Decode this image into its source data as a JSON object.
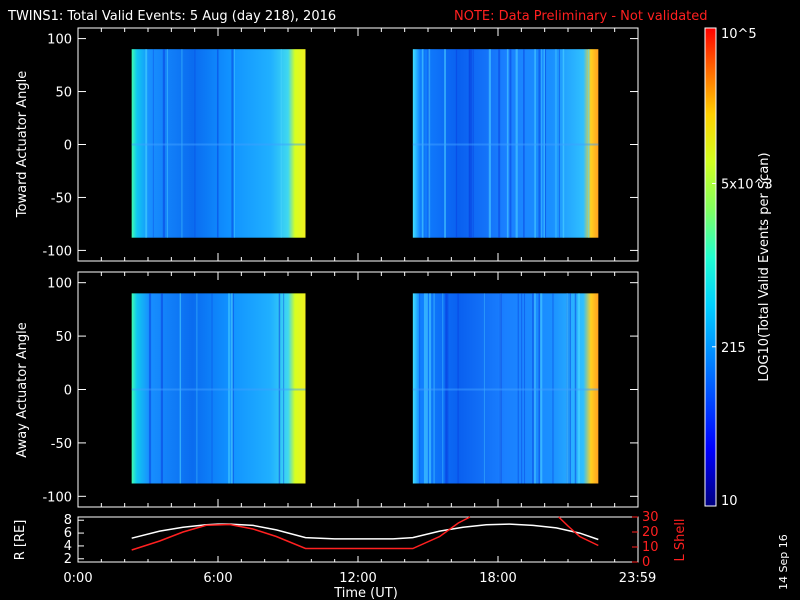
{
  "header": {
    "title": "TWINS1: Total Valid Events:  5 Aug (day 218), 2016",
    "note": "NOTE: Data Preliminary - Not validated"
  },
  "footer": {
    "stamp": "14 Sep 16"
  },
  "colors": {
    "note": "#ff2020",
    "background": "#000000",
    "frame": "#ffffff",
    "lshell": "#ff2020",
    "rdist": "#ffffff"
  },
  "chart_data": [
    {
      "type": "heatmap",
      "panel": "toward",
      "ylabel": "Toward Actuator Angle",
      "ylim": [
        -110,
        110
      ],
      "yticks": [
        100,
        50,
        0,
        -50,
        -100
      ],
      "xlim": [
        0,
        24
      ],
      "x_units": "hours UT",
      "data_blocks": [
        {
          "start_hour": 2.3,
          "end_hour": 9.75,
          "angle_range": [
            -88,
            90
          ]
        },
        {
          "start_hour": 14.35,
          "end_hour": 22.3,
          "angle_range": [
            -88,
            90
          ]
        }
      ],
      "colorbar": {
        "label": "LOG10(Total Valid Events per Scan)",
        "tick_labels": [
          "10",
          "215",
          "5x10^3",
          "10^5"
        ],
        "tick_values": [
          10,
          215,
          5000,
          100000
        ],
        "scale": "log"
      }
    },
    {
      "type": "heatmap",
      "panel": "away",
      "ylabel": "Away Actuator Angle",
      "ylim": [
        -110,
        110
      ],
      "yticks": [
        100,
        50,
        0,
        -50,
        -100
      ],
      "xlim": [
        0,
        24
      ],
      "x_units": "hours UT",
      "data_blocks": [
        {
          "start_hour": 2.3,
          "end_hour": 9.75,
          "angle_range": [
            -88,
            90
          ]
        },
        {
          "start_hour": 14.35,
          "end_hour": 22.3,
          "angle_range": [
            -88,
            90
          ]
        }
      ]
    },
    {
      "type": "line",
      "panel": "ephemeris",
      "xlabel": "Time (UT)",
      "x_tick_labels": [
        "0:00",
        "6:00",
        "12:00",
        "18:00",
        "23:59"
      ],
      "x_tick_values": [
        0,
        6,
        12,
        18,
        23.98
      ],
      "xlim": [
        0,
        24
      ],
      "left_axis": {
        "label": "R [RE]",
        "ylim": [
          1.5,
          8.5
        ],
        "ticks": [
          8,
          6,
          4,
          2
        ]
      },
      "right_axis": {
        "label": "L Shell",
        "ylim": [
          0,
          30
        ],
        "ticks": [
          30,
          20,
          10,
          0
        ]
      },
      "series": [
        {
          "name": "R [RE]",
          "axis": "left",
          "color": "#ffffff",
          "x": [
            2.3,
            3.5,
            4.5,
            5.5,
            6.0,
            6.5,
            7.5,
            8.5,
            9.75,
            11.0,
            12.0,
            13.5,
            14.35,
            15.5,
            16.5,
            17.5,
            18.5,
            19.5,
            20.5,
            21.5,
            22.3
          ],
          "y": [
            5.2,
            6.3,
            6.9,
            7.3,
            7.4,
            7.4,
            7.2,
            6.5,
            5.3,
            5.1,
            5.1,
            5.1,
            5.3,
            6.3,
            6.9,
            7.3,
            7.4,
            7.2,
            6.8,
            6.0,
            5.0
          ]
        },
        {
          "name": "L Shell",
          "axis": "right",
          "color": "#ff2020",
          "x": [
            2.3,
            3.5,
            4.5,
            5.5,
            6.5,
            7.5,
            8.5,
            9.75,
            11.0,
            12.0,
            13.5,
            14.35,
            15.5,
            16.3,
            16.8
          ],
          "y": [
            8,
            14,
            20,
            24.5,
            25,
            22,
            17,
            9,
            9,
            9,
            9,
            9,
            17,
            26,
            31
          ]
        },
        {
          "name": "L Shell",
          "axis": "right",
          "color": "#ff2020",
          "x": [
            20.6,
            21.0,
            21.5,
            22.3
          ],
          "y": [
            31,
            24,
            17,
            11
          ]
        }
      ]
    }
  ]
}
